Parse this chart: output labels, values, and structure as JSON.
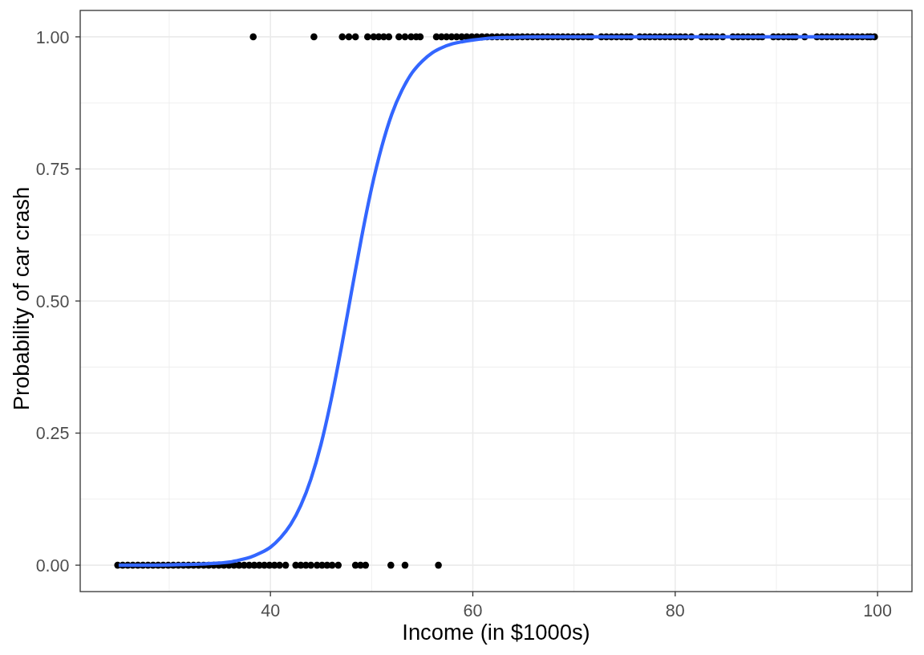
{
  "chart_data": {
    "type": "scatter",
    "xlabel": "Income (in $1000s)",
    "ylabel": "Probability of car crash",
    "xlim": [
      21.2,
      103.4
    ],
    "xticks": [
      40,
      60,
      80,
      100
    ],
    "ylim": [
      -0.05,
      1.05
    ],
    "yticks": [
      {
        "value": 0,
        "label": "0.00"
      },
      {
        "value": 0.25,
        "label": "0.25"
      },
      {
        "value": 0.5,
        "label": "0.50"
      },
      {
        "value": 0.75,
        "label": "0.75"
      },
      {
        "value": 1,
        "label": "1.00"
      }
    ],
    "grid": true,
    "series": [
      {
        "type": "scatter",
        "color": "#000000",
        "marker": "circle",
        "x": [
          24.9,
          25.4,
          25.9,
          26.4,
          26.9,
          27.4,
          27.9,
          28.4,
          28.9,
          29.4,
          29.9,
          30.4,
          30.9,
          31.4,
          31.9,
          32.4,
          32.9,
          33.4,
          33.9,
          34.4,
          34.9,
          35.4,
          35.9,
          36.4,
          36.9,
          37.4,
          37.9,
          38.4,
          38.9,
          39.4,
          39.9,
          40.4,
          40.9,
          41.5,
          42.5,
          43.0,
          43.5,
          44.0,
          44.6,
          45.1,
          45.6,
          46.1,
          46.7,
          48.4,
          48.9,
          49.4,
          51.9,
          53.3,
          56.6
        ],
        "values": [
          0,
          0,
          0,
          0,
          0,
          0,
          0,
          0,
          0,
          0,
          0,
          0,
          0,
          0,
          0,
          0,
          0,
          0,
          0,
          0,
          0,
          0,
          0,
          0,
          0,
          0,
          0,
          0,
          0,
          0,
          0,
          0,
          0,
          0,
          0,
          0,
          0,
          0,
          0,
          0,
          0,
          0,
          0,
          0,
          0,
          0,
          0,
          0,
          0
        ]
      },
      {
        "type": "scatter",
        "color": "#000000",
        "marker": "circle",
        "x": [
          38.3,
          44.3,
          47.1,
          47.75,
          48.4,
          49.6,
          50.2,
          50.7,
          51.2,
          51.7,
          52.7,
          53.3,
          53.9,
          54.4,
          54.8,
          56.4,
          56.9,
          57.4,
          57.9,
          58.4,
          58.9,
          59.4,
          59.9,
          60.4,
          60.9,
          61.4,
          61.9,
          62.4,
          62.9,
          63.4,
          63.9,
          64.4,
          64.9,
          65.4,
          65.9,
          66.4,
          66.9,
          67.4,
          67.9,
          68.4,
          68.9,
          69.4,
          69.9,
          70.4,
          70.9,
          71.4,
          71.7,
          72.7,
          73.2,
          73.7,
          74.2,
          74.7,
          75.2,
          75.6,
          76.5,
          77.0,
          77.5,
          78.0,
          78.5,
          79.0,
          79.5,
          80.0,
          80.5,
          81.0,
          81.6,
          82.6,
          83.1,
          83.6,
          84.1,
          84.7,
          85.7,
          86.2,
          86.7,
          87.2,
          87.7,
          88.2,
          88.6,
          89.7,
          90.2,
          90.7,
          91.2,
          91.6,
          91.9,
          92.8,
          94.0,
          94.5,
          95.0,
          95.5,
          96.0,
          96.5,
          97.0,
          97.5,
          98.0,
          98.5,
          99.0,
          99.3,
          99.7
        ],
        "values": [
          1,
          1,
          1,
          1,
          1,
          1,
          1,
          1,
          1,
          1,
          1,
          1,
          1,
          1,
          1,
          1,
          1,
          1,
          1,
          1,
          1,
          1,
          1,
          1,
          1,
          1,
          1,
          1,
          1,
          1,
          1,
          1,
          1,
          1,
          1,
          1,
          1,
          1,
          1,
          1,
          1,
          1,
          1,
          1,
          1,
          1,
          1,
          1,
          1,
          1,
          1,
          1,
          1,
          1,
          1,
          1,
          1,
          1,
          1,
          1,
          1,
          1,
          1,
          1,
          1,
          1,
          1,
          1,
          1,
          1,
          1,
          1,
          1,
          1,
          1,
          1,
          1,
          1,
          1,
          1,
          1,
          1,
          1,
          1,
          1,
          1,
          1,
          1,
          1,
          1,
          1,
          1,
          1,
          1,
          1,
          1,
          1
        ]
      },
      {
        "type": "line",
        "color": "#3366ff",
        "line_style": "solid",
        "x": [
          25,
          28,
          31,
          33,
          35,
          36,
          37,
          38,
          39,
          40,
          41,
          42,
          43,
          44,
          45,
          46,
          47,
          48,
          49,
          50,
          51,
          52,
          53,
          54,
          55,
          56,
          57,
          58,
          59,
          60,
          62,
          64,
          67,
          70,
          75,
          80,
          90,
          99.7
        ],
        "values": [
          0,
          0,
          0.001,
          0.002,
          0.004,
          0.006,
          0.01,
          0.015,
          0.023,
          0.034,
          0.052,
          0.077,
          0.113,
          0.163,
          0.229,
          0.313,
          0.411,
          0.516,
          0.62,
          0.714,
          0.792,
          0.854,
          0.899,
          0.932,
          0.954,
          0.97,
          0.98,
          0.987,
          0.991,
          0.994,
          0.998,
          0.999,
          1,
          1,
          1,
          1,
          1,
          1
        ]
      }
    ]
  }
}
